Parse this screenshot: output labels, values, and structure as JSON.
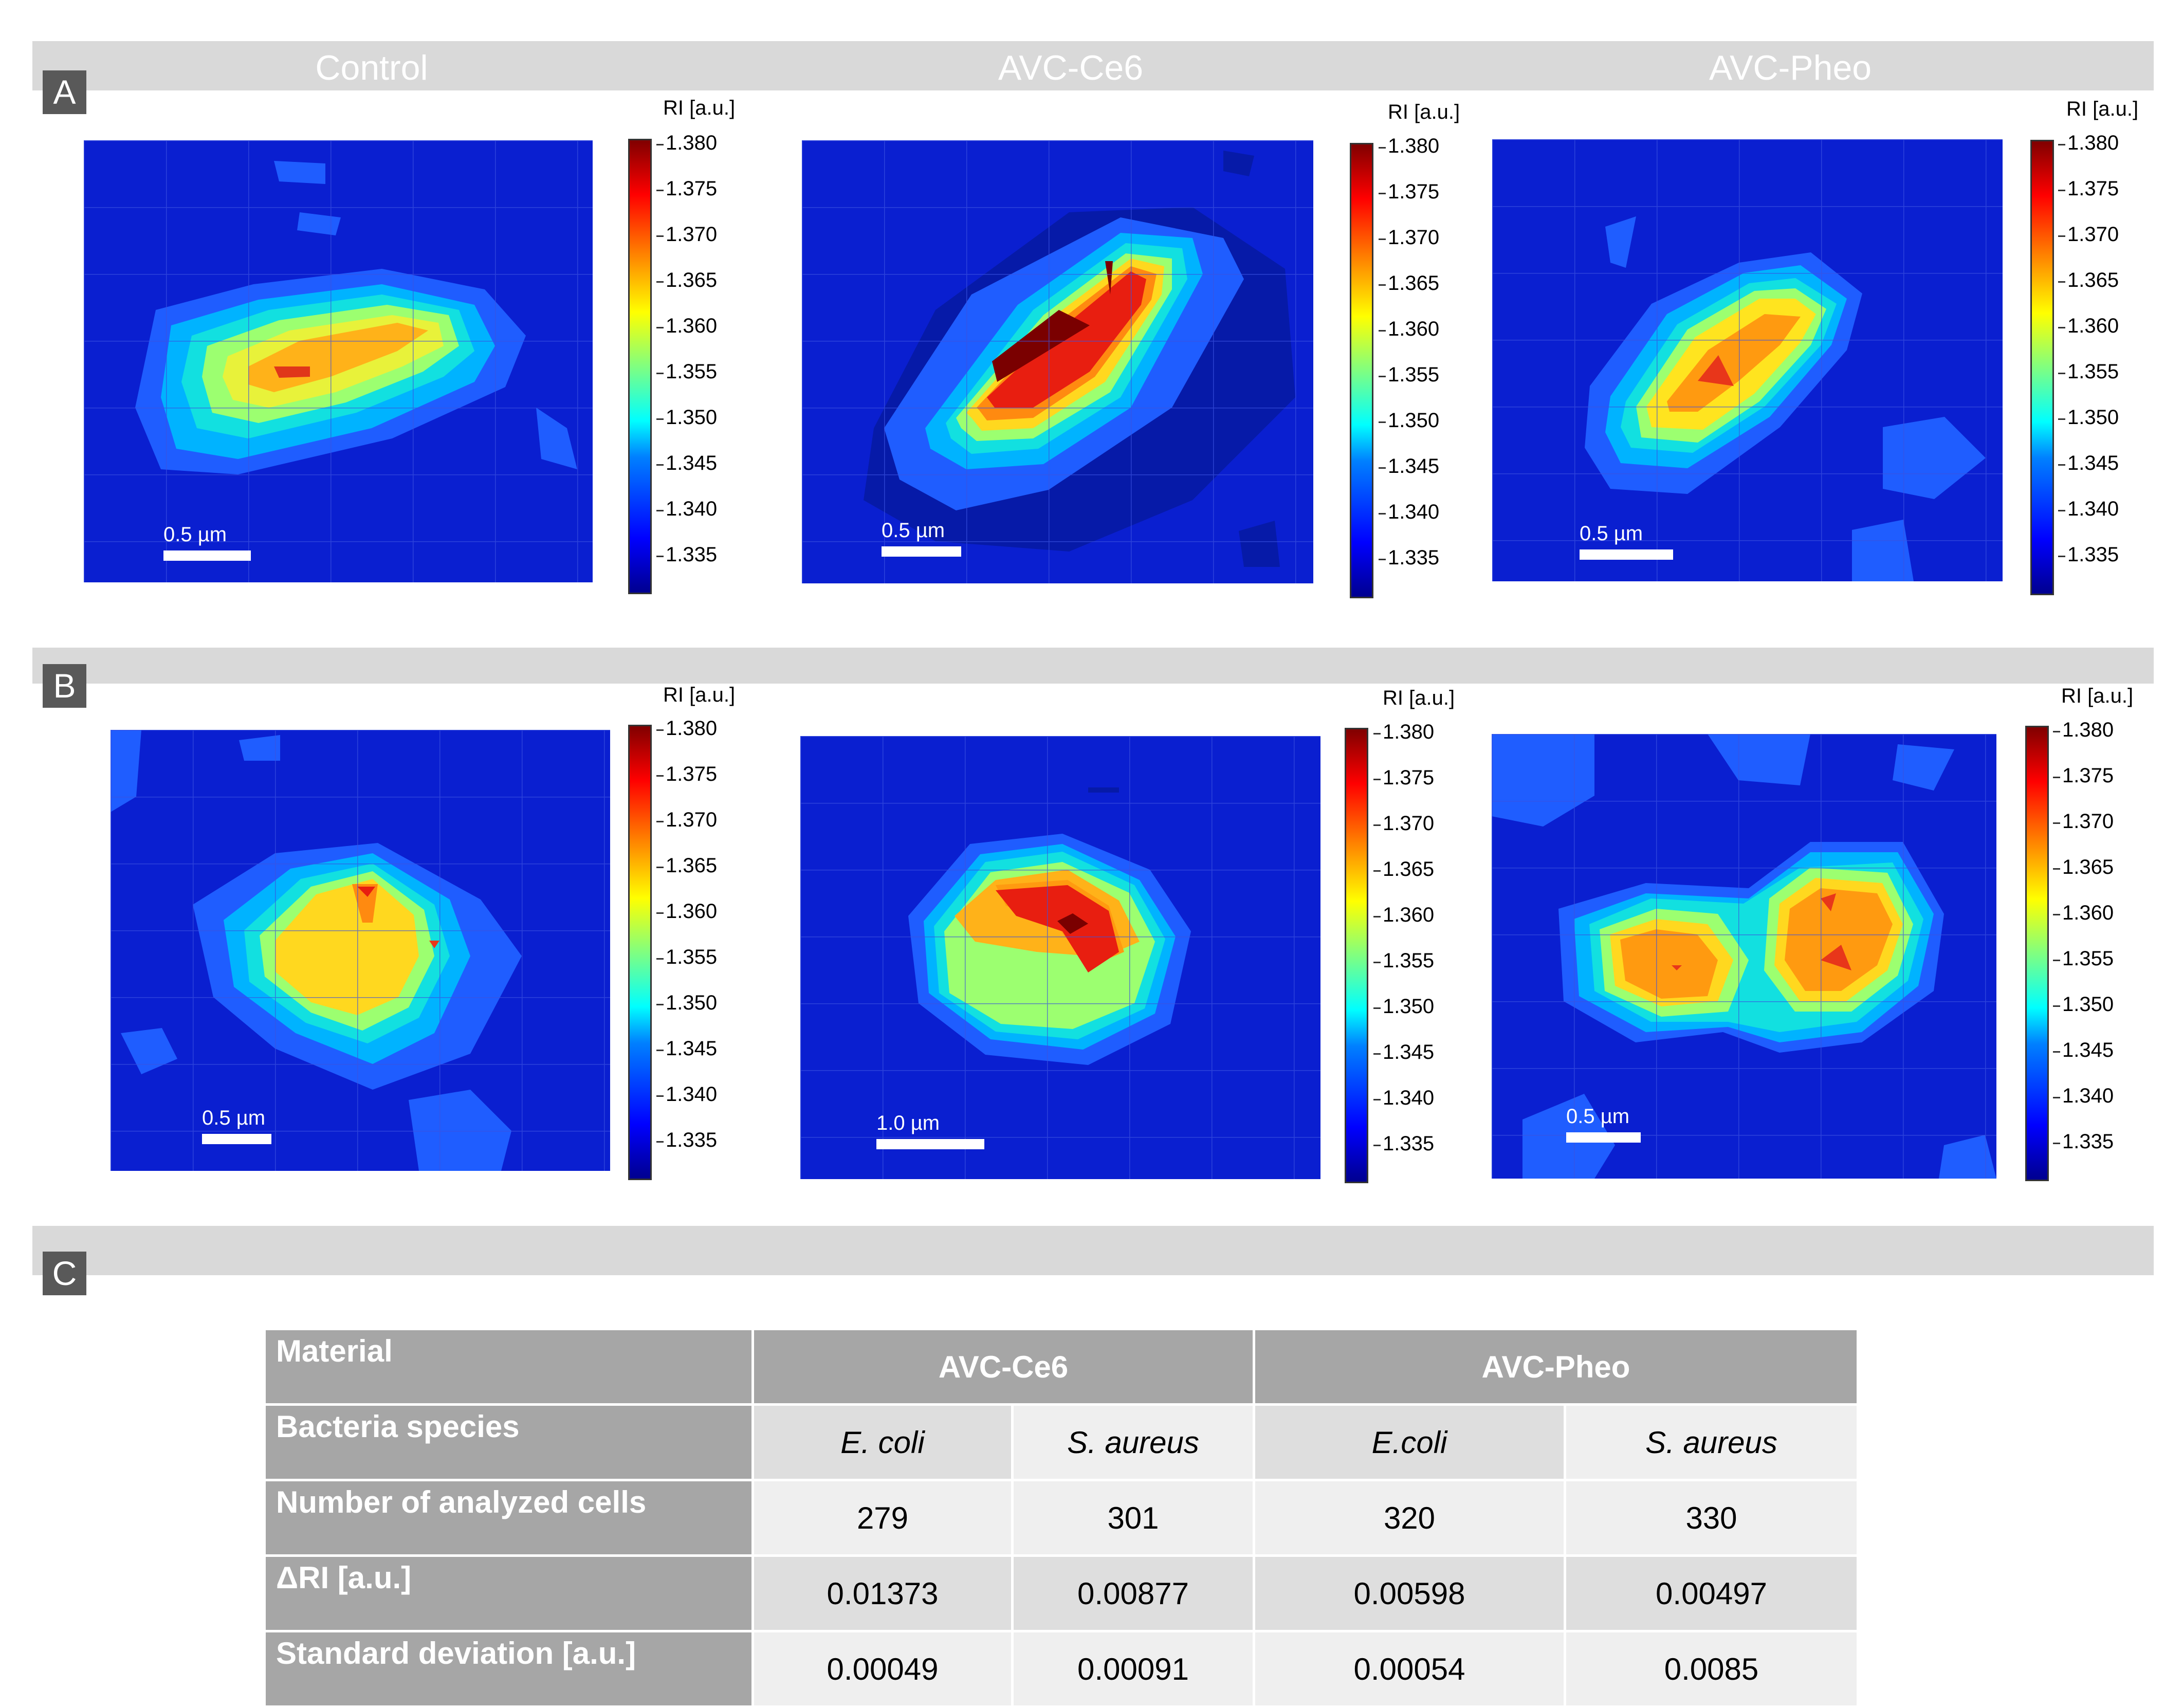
{
  "panels": {
    "a": "A",
    "b": "B",
    "c": "C"
  },
  "columns": {
    "control": "Control",
    "ce6": "AVC-Ce6",
    "pheo": "AVC-Pheo"
  },
  "colorbar": {
    "title": "RI [a.u.]",
    "ticks": [
      "1.380",
      "1.375",
      "1.370",
      "1.365",
      "1.360",
      "1.355",
      "1.350",
      "1.345",
      "1.340",
      "1.335"
    ]
  },
  "scalebars": {
    "half_um": "0.5 µm",
    "one_um": "1.0 µm"
  },
  "colors": {
    "background_low": "#0a1fd0",
    "band": "#d9d9d9",
    "header_cell": "#a6a6a6"
  },
  "table": {
    "row_headers": [
      "Material",
      "Bacteria species",
      "Number of analyzed cells",
      "ΔRI [a.u.]",
      "Standard deviation [a.u.]"
    ],
    "materials": [
      "AVC-Ce6",
      "AVC-Pheo"
    ],
    "species": [
      "E. coli",
      "S. aureus",
      "E.coli",
      "S. aureus"
    ],
    "cells": [
      "279",
      "301",
      "320",
      "330"
    ],
    "delta_ri": [
      "0.01373",
      "0.00877",
      "0.00598",
      "0.00497"
    ],
    "std_dev": [
      "0.00049",
      "0.00091",
      "0.00054",
      "0.0085"
    ]
  }
}
